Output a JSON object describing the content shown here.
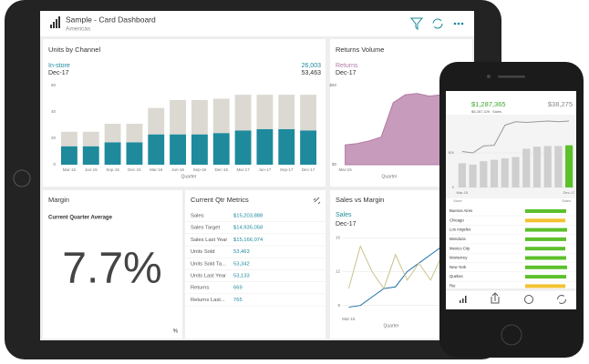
{
  "header": {
    "title": "Sample - Card Dashboard",
    "subtitle": "Americas"
  },
  "chart_data": [
    {
      "type": "bar",
      "stacked": true,
      "title": "Units by Channel",
      "period": "Dec-17",
      "callouts": [
        "26,003",
        "53,463"
      ],
      "categories": [
        "Mar-15",
        "Jun-15",
        "Sep-15",
        "Dec-15",
        "Mar-16",
        "Jun-16",
        "Sep-16",
        "Dec-16",
        "Mar-17",
        "Jun-17",
        "Sep-17",
        "Dec-17"
      ],
      "series": [
        {
          "name": "In-store",
          "color": "#1e8a9c",
          "values": [
            14,
            14,
            17,
            17,
            23,
            23,
            23,
            24,
            26,
            27,
            27,
            26
          ]
        },
        {
          "color": "#dcd9d2",
          "values": [
            11,
            11,
            14,
            14,
            20,
            26,
            26,
            26,
            27,
            26,
            26,
            27
          ]
        }
      ],
      "xlabel": "Quarter",
      "ylim": [
        0,
        60
      ],
      "yticks": [
        0,
        20,
        40,
        60
      ],
      "grid": false
    },
    {
      "type": "area",
      "title": "Returns Volume",
      "period": "Dec-17",
      "categories": [
        "Mar-15",
        null,
        null,
        null,
        null,
        null,
        null,
        null,
        null,
        null,
        null,
        null
      ],
      "series": [
        {
          "name": "Returns",
          "color": "#b47aa4",
          "values": [
            15,
            16,
            18,
            21,
            47,
            53,
            54,
            52,
            53,
            55,
            55,
            56
          ]
        }
      ],
      "xlabel": "Quarter",
      "ylim": [
        0,
        60
      ],
      "yticks": [
        {
          "value": 0,
          "label": "$0"
        },
        {
          "value": 60,
          "label": "$60"
        }
      ],
      "grid": false
    },
    {
      "type": "line",
      "title": "Sales vs Margin",
      "period": "Dec-17",
      "categories": [
        "Mar-15",
        null,
        null,
        null,
        null,
        null,
        null,
        null,
        null,
        null,
        null,
        null
      ],
      "series": [
        {
          "name": "Sales",
          "color": "#1f6fa8",
          "values": [
            7.8,
            8,
            9,
            10,
            10.2,
            12,
            13,
            14,
            15,
            15.4,
            15.8,
            16
          ]
        },
        {
          "color": "#c9c38c",
          "values": [
            10,
            15,
            12,
            10,
            14,
            11,
            13,
            11,
            14,
            12,
            13,
            12
          ]
        }
      ],
      "xlabel": "Quarter",
      "ylim": [
        7,
        17
      ],
      "yticks": [
        8,
        12,
        16
      ],
      "grid": true
    },
    {
      "type": "bar",
      "headline": "$1,287,365",
      "subtext": "$5,287,329",
      "subtext_label": "Sales",
      "comparison": "$38,275",
      "categories": [
        "Mar-15",
        null,
        null,
        null,
        null,
        null,
        null,
        null,
        null,
        null,
        "Dec-17"
      ],
      "series": [
        {
          "color": "#cfcfcf",
          "colors": [
            "#cfcfcf",
            "#cfcfcf",
            "#cfcfcf",
            "#cfcfcf",
            "#cfcfcf",
            "#cfcfcf",
            "#cfcfcf",
            "#cfcfcf",
            "#cfcfcf",
            "#cfcfcf",
            "#5cc02b"
          ],
          "values": [
            350,
            330,
            380,
            400,
            420,
            440,
            560,
            590,
            600,
            600,
            610
          ]
        },
        {
          "type": "line",
          "color": "#9a9a9a",
          "values": [
            520,
            500,
            600,
            610,
            900,
            950,
            940,
            950,
            960,
            950,
            960
          ]
        }
      ],
      "ylim": [
        0,
        1000
      ],
      "yticks": [
        0,
        500
      ],
      "grid": true
    }
  ],
  "margin": {
    "title": "Margin",
    "subtitle": "Current Quarter Average",
    "value": "7.7%",
    "unit": "%"
  },
  "metrics": {
    "title": "Current Qtr Metrics",
    "rows": [
      [
        "Sales",
        "$15,203,888"
      ],
      [
        "Sales Target",
        "$14,935,058"
      ],
      [
        "Sales Last Year",
        "$15,166,074"
      ],
      [
        "Units Sold",
        "53,463"
      ],
      [
        "Units Sold Ta...",
        "53,342"
      ],
      [
        "Units Last Year",
        "53,133"
      ],
      [
        "Returns",
        "669"
      ],
      [
        "Returns Last...",
        "765"
      ]
    ]
  },
  "phone_list": {
    "header": [
      "Store",
      "Sales"
    ],
    "xlim": [
      0,
      50
    ],
    "rows": [
      {
        "name": "Buenos Aires",
        "value": 45,
        "color": "#5cc02b"
      },
      {
        "name": "Chicago",
        "value": 44,
        "color": "#f2c230"
      },
      {
        "name": "Los Angeles",
        "value": 46,
        "color": "#5cc02b"
      },
      {
        "name": "Mendoza",
        "value": 45,
        "color": "#5cc02b"
      },
      {
        "name": "Mexico City",
        "value": 44,
        "color": "#5cc02b"
      },
      {
        "name": "Monterrey",
        "value": 45,
        "color": "#5cc02b"
      },
      {
        "name": "New York",
        "value": 46,
        "color": "#5cc02b"
      },
      {
        "name": "Quebec",
        "value": 45,
        "color": "#5cc02b"
      },
      {
        "name": "Rio",
        "value": 44,
        "color": "#f2c230"
      }
    ]
  }
}
